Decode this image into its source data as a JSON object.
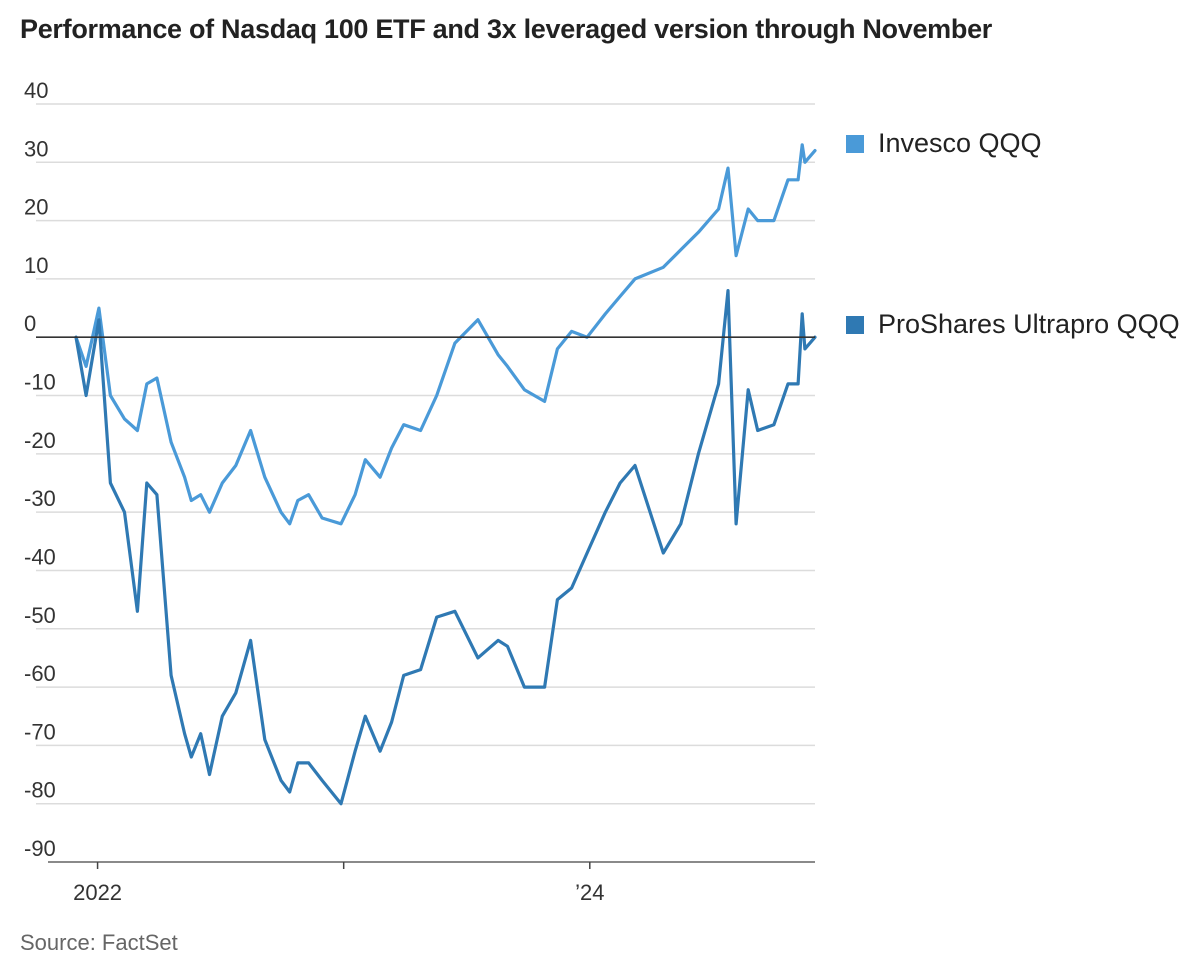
{
  "title": "Performance of Nasdaq 100 ETF and 3x leveraged version through November",
  "source": "Source: FactSet",
  "colors": {
    "qqq": "#4a9ad8",
    "tqqq": "#2f79b3",
    "grid": "#dcdcdc",
    "zero": "#333333",
    "axis": "#444444"
  },
  "chart_data": {
    "type": "line",
    "ylim": [
      -90,
      40
    ],
    "y_ticks": [
      40,
      30,
      20,
      10,
      0,
      -10,
      -20,
      -30,
      -40,
      -50,
      -60,
      -70,
      -80,
      -90
    ],
    "y_tick_labels": [
      "40",
      "30",
      "20",
      "10",
      "0",
      "-10",
      "-20",
      "-30",
      "-40",
      "-50",
      "-60",
      "-70",
      "-80",
      "-90"
    ],
    "xlim": [
      "2021-11-30",
      "2024-11-30"
    ],
    "x_ticks": [
      "2022-01-01",
      "2023-01-01",
      "2024-01-01"
    ],
    "x_tick_labels": [
      "2022",
      "",
      "’24"
    ],
    "legend_position": "right",
    "series": [
      {
        "name": "Invesco QQQ",
        "x": [
          "2021-11-30",
          "2021-12-15",
          "2022-01-03",
          "2022-01-20",
          "2022-02-10",
          "2022-03-01",
          "2022-03-15",
          "2022-03-30",
          "2022-04-20",
          "2022-05-10",
          "2022-05-20",
          "2022-06-03",
          "2022-06-16",
          "2022-07-05",
          "2022-07-25",
          "2022-08-16",
          "2022-09-06",
          "2022-09-30",
          "2022-10-13",
          "2022-10-25",
          "2022-11-10",
          "2022-11-30",
          "2022-12-28",
          "2023-01-18",
          "2023-02-02",
          "2023-02-24",
          "2023-03-13",
          "2023-03-31",
          "2023-04-25",
          "2023-05-19",
          "2023-06-15",
          "2023-07-19",
          "2023-08-18",
          "2023-09-01",
          "2023-09-26",
          "2023-10-26",
          "2023-11-14",
          "2023-12-05",
          "2023-12-28",
          "2024-01-24",
          "2024-02-15",
          "2024-03-08",
          "2024-04-19",
          "2024-05-15",
          "2024-06-10",
          "2024-07-10",
          "2024-07-24",
          "2024-08-05",
          "2024-08-23",
          "2024-09-06",
          "2024-09-30",
          "2024-10-21",
          "2024-11-05",
          "2024-11-11",
          "2024-11-15",
          "2024-11-30"
        ],
        "values": [
          0,
          -5,
          5,
          -10,
          -14,
          -16,
          -8,
          -7,
          -18,
          -24,
          -28,
          -27,
          -30,
          -25,
          -22,
          -16,
          -24,
          -30,
          -32,
          -28,
          -27,
          -31,
          -32,
          -27,
          -21,
          -24,
          -19,
          -15,
          -16,
          -10,
          -1,
          3,
          -3,
          -5,
          -9,
          -11,
          -2,
          1,
          0,
          4,
          7,
          10,
          12,
          15,
          18,
          22,
          29,
          14,
          22,
          20,
          20,
          27,
          27,
          33,
          30,
          32
        ]
      },
      {
        "name": "ProShares Ultrapro QQQ",
        "x": [
          "2021-11-30",
          "2021-12-15",
          "2022-01-03",
          "2022-01-20",
          "2022-02-10",
          "2022-03-01",
          "2022-03-15",
          "2022-03-30",
          "2022-04-20",
          "2022-05-10",
          "2022-05-20",
          "2022-06-03",
          "2022-06-16",
          "2022-07-05",
          "2022-07-25",
          "2022-08-16",
          "2022-09-06",
          "2022-09-30",
          "2022-10-13",
          "2022-10-25",
          "2022-11-10",
          "2022-11-30",
          "2022-12-28",
          "2023-01-18",
          "2023-02-02",
          "2023-02-24",
          "2023-03-13",
          "2023-03-31",
          "2023-04-25",
          "2023-05-19",
          "2023-06-15",
          "2023-07-19",
          "2023-08-18",
          "2023-09-01",
          "2023-09-26",
          "2023-10-26",
          "2023-11-14",
          "2023-12-05",
          "2023-12-28",
          "2024-01-24",
          "2024-02-15",
          "2024-03-08",
          "2024-04-19",
          "2024-05-15",
          "2024-06-10",
          "2024-07-10",
          "2024-07-24",
          "2024-08-05",
          "2024-08-23",
          "2024-09-06",
          "2024-09-30",
          "2024-10-21",
          "2024-11-05",
          "2024-11-11",
          "2024-11-15",
          "2024-11-30"
        ],
        "values": [
          0,
          -10,
          3,
          -25,
          -30,
          -47,
          -25,
          -27,
          -58,
          -68,
          -72,
          -68,
          -75,
          -65,
          -61,
          -52,
          -69,
          -76,
          -78,
          -73,
          -73,
          -76,
          -80,
          -71,
          -65,
          -71,
          -66,
          -58,
          -57,
          -48,
          -47,
          -55,
          -52,
          -53,
          -60,
          -60,
          -45,
          -43,
          -37,
          -30,
          -25,
          -22,
          -37,
          -32,
          -20,
          -8,
          8,
          -32,
          -9,
          -16,
          -15,
          -8,
          -8,
          4,
          -2,
          0
        ]
      }
    ]
  }
}
